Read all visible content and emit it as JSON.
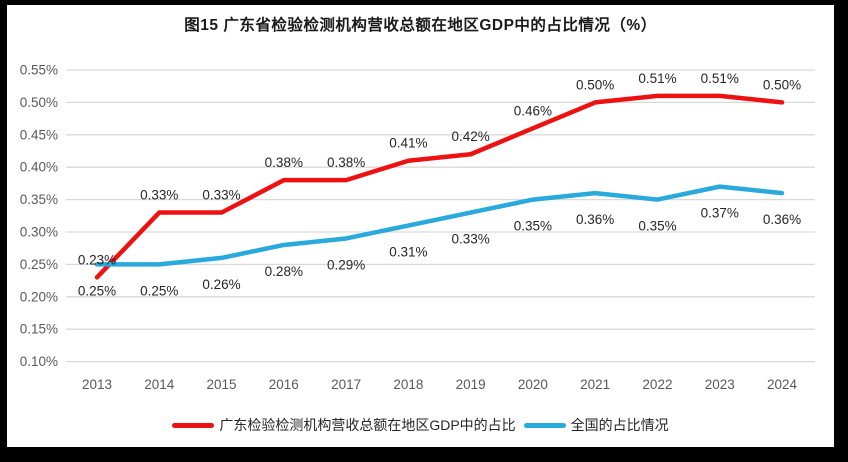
{
  "chart_data": {
    "type": "line",
    "title": "图15  广东省检验检测机构营收总额在地区GDP中的占比情况（%）",
    "categories": [
      "2013",
      "2014",
      "2015",
      "2016",
      "2017",
      "2018",
      "2019",
      "2020",
      "2021",
      "2022",
      "2023",
      "2024"
    ],
    "series": [
      {
        "name": "广东检验检测机构营收总额在地区GDP中的占比",
        "color": "#EE1111",
        "values": [
          0.23,
          0.33,
          0.33,
          0.38,
          0.38,
          0.41,
          0.42,
          0.46,
          0.5,
          0.51,
          0.51,
          0.5
        ],
        "data_labels": [
          "0.23%",
          "0.33%",
          "0.33%",
          "0.38%",
          "0.38%",
          "0.41%",
          "0.42%",
          "0.46%",
          "0.50%",
          "0.51%",
          "0.51%",
          "0.50%"
        ],
        "label_position": "above"
      },
      {
        "name": "全国的占比情况",
        "color": "#29A9DC",
        "values": [
          0.25,
          0.25,
          0.26,
          0.28,
          0.29,
          0.31,
          0.33,
          0.35,
          0.36,
          0.35,
          0.37,
          0.36
        ],
        "data_labels": [
          "0.25%",
          "0.25%",
          "0.26%",
          "0.28%",
          "0.29%",
          "0.31%",
          "0.33%",
          "0.35%",
          "0.36%",
          "0.35%",
          "0.37%",
          "0.36%"
        ],
        "label_position": "below"
      }
    ],
    "y_axis": {
      "min": 0.1,
      "max": 0.55,
      "step": 0.05,
      "tick_labels": [
        "0.55%",
        "0.50%",
        "0.45%",
        "0.40%",
        "0.35%",
        "0.30%",
        "0.25%",
        "0.20%",
        "0.15%",
        "0.10%"
      ],
      "grid": true
    },
    "x_axis": {
      "tick_labels": [
        "2013",
        "2014",
        "2015",
        "2016",
        "2017",
        "2018",
        "2019",
        "2020",
        "2021",
        "2022",
        "2023",
        "2024"
      ]
    },
    "legend_position": "bottom",
    "colors": {
      "grid": "#D9D9D9",
      "axis_text": "#595959",
      "data_label_text": "#262626",
      "plot_background": "#FFFFFF",
      "outer_background": "#000000"
    }
  }
}
